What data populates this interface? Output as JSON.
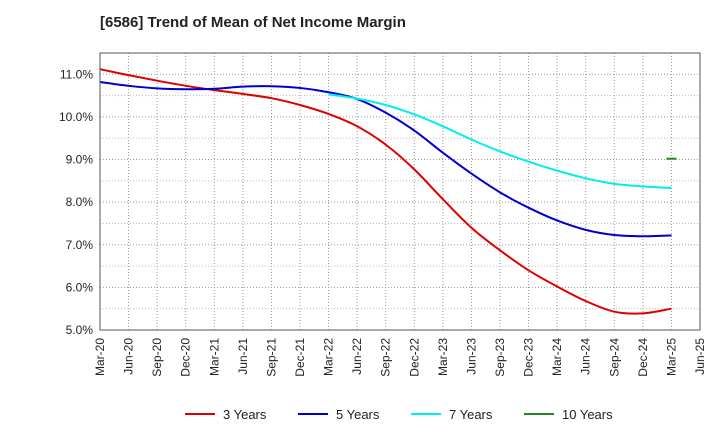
{
  "chart_data": {
    "type": "line",
    "title": "[6586]  Trend of Mean of Net Income Margin",
    "xlabel": "",
    "ylabel": "",
    "x": [
      "Mar-20",
      "Jun-20",
      "Sep-20",
      "Dec-20",
      "Mar-21",
      "Jun-21",
      "Sep-21",
      "Dec-21",
      "Mar-22",
      "Jun-22",
      "Sep-22",
      "Dec-22",
      "Mar-23",
      "Jun-23",
      "Sep-23",
      "Dec-23",
      "Mar-24",
      "Jun-24",
      "Sep-24",
      "Dec-24",
      "Mar-25",
      "Jun-25"
    ],
    "yticks": [
      "5.0%",
      "6.0%",
      "7.0%",
      "8.0%",
      "9.0%",
      "10.0%",
      "11.0%"
    ],
    "ylim": [
      5.0,
      11.5
    ],
    "grid": true,
    "legend_position": "bottom",
    "series": [
      {
        "name": "3 Years",
        "color": "#dd0000",
        "values": [
          11.12,
          10.98,
          10.85,
          10.73,
          10.63,
          10.54,
          10.44,
          10.28,
          10.07,
          9.78,
          9.35,
          8.77,
          8.07,
          7.4,
          6.87,
          6.4,
          6.02,
          5.68,
          5.43,
          5.39,
          5.5,
          null
        ]
      },
      {
        "name": "5 Years",
        "color": "#0000cc",
        "values": [
          10.82,
          10.73,
          10.67,
          10.65,
          10.66,
          10.71,
          10.72,
          10.68,
          10.58,
          10.42,
          10.1,
          9.68,
          9.16,
          8.67,
          8.23,
          7.87,
          7.57,
          7.35,
          7.23,
          7.2,
          7.22,
          null
        ]
      },
      {
        "name": "7 Years",
        "color": "#00eeee",
        "values": [
          null,
          null,
          null,
          null,
          null,
          null,
          null,
          null,
          10.53,
          10.43,
          10.28,
          10.06,
          9.78,
          9.47,
          9.19,
          8.95,
          8.74,
          8.56,
          8.43,
          8.37,
          8.33,
          null
        ]
      },
      {
        "name": "10 Years",
        "color": "#228822",
        "values": [
          null,
          null,
          null,
          null,
          null,
          null,
          null,
          null,
          null,
          null,
          null,
          null,
          null,
          null,
          null,
          null,
          null,
          null,
          null,
          null,
          9.02,
          null
        ]
      }
    ]
  }
}
